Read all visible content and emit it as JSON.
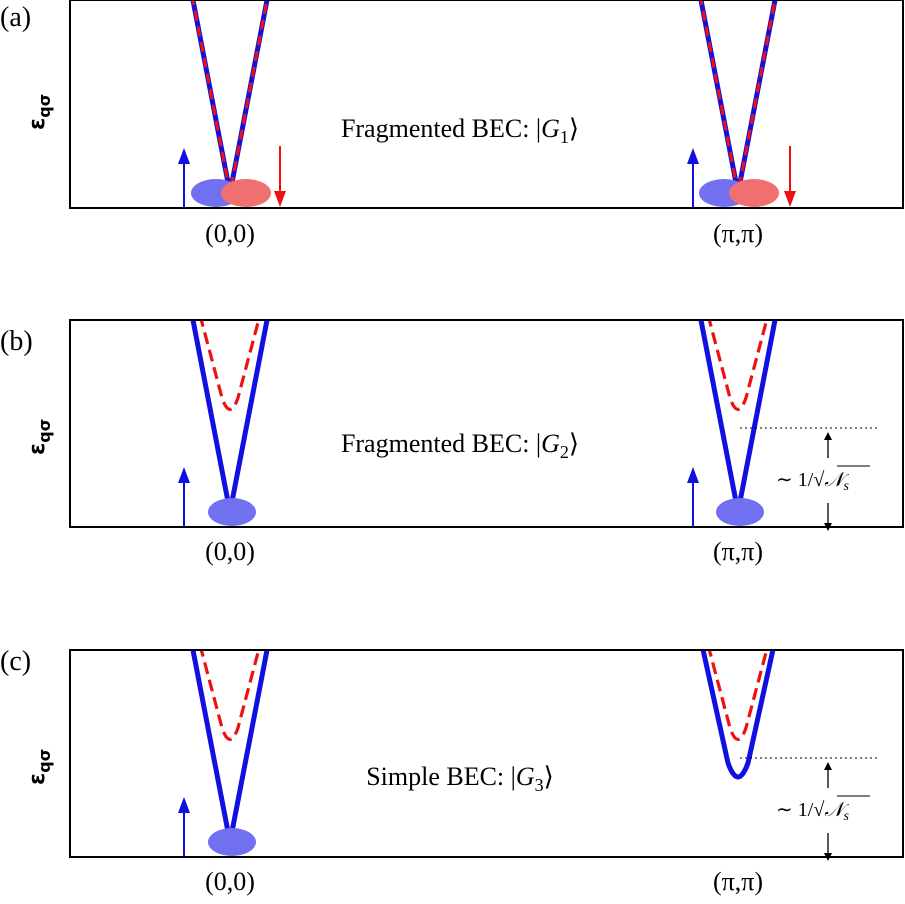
{
  "colors": {
    "spin_up": "#1010e0",
    "spin_down": "#ee1111",
    "condensate_up": "#7070f0",
    "condensate_down": "#f07070",
    "frame": "#000000"
  },
  "panels": [
    {
      "id": "a",
      "panel_label": "(a)",
      "ylabel_symbol": "ε",
      "ylabel_subscript": "qσ",
      "state_prefix": "Fragmented BEC: |",
      "state_symbol": "G",
      "state_subscript": "1",
      "state_suffix": "⟩",
      "x_tick_left": "(0,0)",
      "x_tick_right": "(π,π)",
      "gap_label": "",
      "has_gap": false,
      "down_dispersion": "degenerate",
      "condensate_spins": [
        "up",
        "down"
      ],
      "condensate_spins_pi": [
        "up",
        "down"
      ]
    },
    {
      "id": "b",
      "panel_label": "(b)",
      "ylabel_symbol": "ε",
      "ylabel_subscript": "qσ",
      "state_prefix": "Fragmented BEC: |",
      "state_symbol": "G",
      "state_subscript": "2",
      "state_suffix": "⟩",
      "x_tick_left": "(0,0)",
      "x_tick_right": "(π,π)",
      "gap_label": "~ 1/√𝒩s",
      "gap_label_main": "∼ 1/",
      "gap_label_sym": "𝒩",
      "gap_label_sub": "s",
      "has_gap": true,
      "down_dispersion": "gapped",
      "condensate_spins": [
        "up"
      ],
      "condensate_spins_pi": [
        "up"
      ]
    },
    {
      "id": "c",
      "panel_label": "(c)",
      "ylabel_symbol": "ε",
      "ylabel_subscript": "qσ",
      "state_prefix": "Simple BEC: |",
      "state_symbol": "G",
      "state_subscript": "3",
      "state_suffix": "⟩",
      "x_tick_left": "(0,0)",
      "x_tick_right": "(π,π)",
      "gap_label": "~ 1/√𝒩s",
      "gap_label_main": "∼ 1/",
      "gap_label_sym": "𝒩",
      "gap_label_sub": "s",
      "has_gap": true,
      "down_dispersion": "gapped",
      "up_gapped_at_pi": true,
      "condensate_spins": [
        "up"
      ],
      "condensate_spins_pi": []
    }
  ]
}
